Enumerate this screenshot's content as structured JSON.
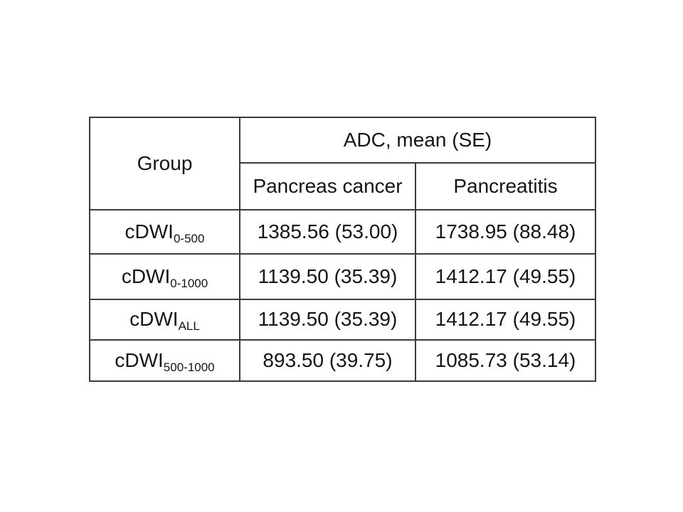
{
  "table": {
    "corner_header": "Group",
    "span_header": "ADC, mean (SE)",
    "sub_headers": [
      "Pancreas cancer",
      "Pancreatitis"
    ],
    "rows": [
      {
        "group_base": "cDWI",
        "group_sub": "0-500",
        "pancreas_cancer": "1385.56 (53.00)",
        "pancreatitis": "1738.95 (88.48)"
      },
      {
        "group_base": "cDWI",
        "group_sub": "0-1000",
        "pancreas_cancer": "1139.50 (35.39)",
        "pancreatitis": "1412.17 (49.55)"
      },
      {
        "group_base": "cDWI",
        "group_sub": "ALL",
        "pancreas_cancer": "1139.50 (35.39)",
        "pancreatitis": "1412.17 (49.55)"
      },
      {
        "group_base": "cDWI",
        "group_sub": "500-1000",
        "pancreas_cancer": "893.50 (39.75)",
        "pancreatitis": "1085.73 (53.14)"
      }
    ],
    "border_color": "#3c3c3c",
    "background_color": "#ffffff",
    "text_color": "#151515"
  },
  "chart_data": {
    "type": "table",
    "title": "",
    "column_group_header": "ADC, mean (SE)",
    "columns": [
      "Group",
      "Pancreas cancer",
      "Pancreatitis"
    ],
    "rows": [
      [
        "cDWI 0-500",
        "1385.56 (53.00)",
        "1738.95 (88.48)"
      ],
      [
        "cDWI 0-1000",
        "1139.50 (35.39)",
        "1412.17 (49.55)"
      ],
      [
        "cDWI ALL",
        "1139.50 (35.39)",
        "1412.17 (49.55)"
      ],
      [
        "cDWI 500-1000",
        "893.50 (39.75)",
        "1085.73 (53.14)"
      ]
    ],
    "series": [
      {
        "name": "Pancreas cancer mean",
        "values": [
          1385.56,
          1139.5,
          1139.5,
          893.5
        ]
      },
      {
        "name": "Pancreas cancer SE",
        "values": [
          53.0,
          35.39,
          35.39,
          39.75
        ]
      },
      {
        "name": "Pancreatitis mean",
        "values": [
          1738.95,
          1412.17,
          1412.17,
          1085.73
        ]
      },
      {
        "name": "Pancreatitis SE",
        "values": [
          88.48,
          49.55,
          49.55,
          53.14
        ]
      }
    ],
    "categories": [
      "cDWI 0-500",
      "cDWI 0-1000",
      "cDWI ALL",
      "cDWI 500-1000"
    ]
  }
}
